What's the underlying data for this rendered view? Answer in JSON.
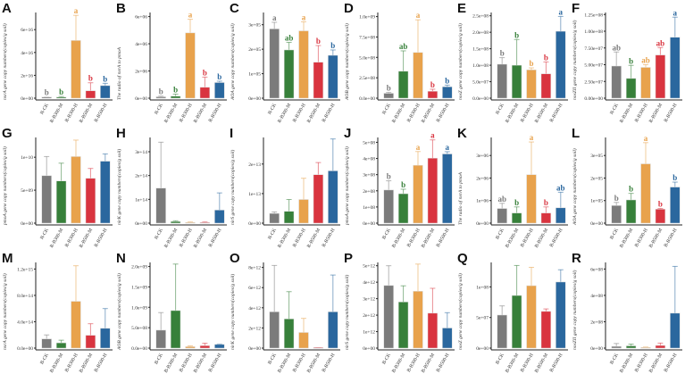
{
  "chart_data": [
    {
      "panel": "A",
      "type": "bar",
      "ylabel": "nxrA gene copy numbers(copies/g soil)",
      "categories": [
        "R-CK",
        "R-B300-M",
        "R-B300-H",
        "R-B500-M",
        "R-B500-H"
      ],
      "ticks": [
        "0e+00",
        "2e+16",
        "4e+16",
        "6e+16"
      ],
      "tick_values": [
        0,
        2e+16,
        4e+16,
        6e+16
      ],
      "ylim": [
        0,
        7.5e+16
      ],
      "values": [
        1000000000000000.0,
        1000000000000000.0,
        5.05e+16,
        6500000000000000.0,
        1.1e+16
      ],
      "err_top": [
        1000000000000000.0,
        1500000000000000.0,
        7.25e+16,
        1.35e+16,
        1.3e+16
      ],
      "sig": [
        "b",
        "b",
        "a",
        "b",
        "b"
      ]
    },
    {
      "panel": "B",
      "type": "bar",
      "ylabel": "The radio of nxrA to pmoA",
      "categories": [
        "R-CK",
        "R-B300-M",
        "R-B300-H",
        "R-B500-M",
        "R-B500-H"
      ],
      "ticks": [
        "0e+00",
        "2e+06",
        "4e+06",
        "6e+06"
      ],
      "tick_values": [
        0,
        2000000.0,
        4000000.0,
        6000000.0
      ],
      "ylim": [
        0,
        6300000.0
      ],
      "values": [
        100000.0,
        150000.0,
        4800000.0,
        800000.0,
        1150000.0
      ],
      "err_top": [
        150000.0,
        300000.0,
        5800000.0,
        1550000.0,
        1250000.0
      ],
      "sig": [
        "b",
        "b",
        "a",
        "b",
        "b"
      ]
    },
    {
      "panel": "C",
      "type": "bar",
      "ylabel": "AOA gene copy numbers(copies/g soil)",
      "categories": [
        "R-CK",
        "R-B300-M",
        "R-B300-H",
        "R-B500-M",
        "R-B500-H"
      ],
      "ticks": [
        "0e+00",
        "1e+05",
        "2e+05",
        "3e+05"
      ],
      "tick_values": [
        0,
        100000.0,
        200000.0,
        300000.0
      ],
      "ylim": [
        0,
        350000.0
      ],
      "values": [
        283000.0,
        197000.0,
        275000.0,
        147000.0,
        175000.0
      ],
      "err_top": [
        310000.0,
        228000.0,
        312000.0,
        215000.0,
        197000.0
      ],
      "sig": [
        "a",
        "ab",
        "a",
        "b",
        "b"
      ]
    },
    {
      "panel": "D",
      "type": "bar",
      "ylabel": "AOB gene copy numbers(copies/g soil)",
      "categories": [
        "R-CK",
        "R-B300-M",
        "R-B300-H",
        "R-B500-M",
        "R-B500-H"
      ],
      "ticks": [
        "0.0e+00",
        "2.5e+08",
        "5.0e+08",
        "7.5e+08",
        "1.0e+09"
      ],
      "tick_values": [
        0,
        250000000.0,
        500000000.0,
        750000000.0,
        1000000000.0
      ],
      "ylim": [
        0,
        1050000000.0
      ],
      "values": [
        60000000.0,
        330000000.0,
        560000000.0,
        85000000.0,
        140000000.0
      ],
      "err_top": [
        70000000.0,
        580000000.0,
        960000000.0,
        110000000.0,
        160000000.0
      ],
      "sig": [
        "b",
        "ab",
        "a",
        "b",
        "b"
      ]
    },
    {
      "panel": "E",
      "type": "bar",
      "ylabel": "nosZ gene copy numbers(copies/g soil)",
      "categories": [
        "R-CK",
        "R-B300-M",
        "R-B300-H",
        "R-B500-M",
        "R-B500-H"
      ],
      "ticks": [
        "0.0e+00",
        "5.0e+07",
        "1.0e+08",
        "1.5e+08",
        "2.0e+08",
        "2.5e+08"
      ],
      "tick_values": [
        0,
        50000000.0,
        100000000.0,
        150000000.0,
        200000000.0,
        250000000.0
      ],
      "ylim": [
        0,
        260000000.0
      ],
      "values": [
        103000000.0,
        100000000.0,
        86000000.0,
        74000000.0,
        203000000.0
      ],
      "err_top": [
        123000000.0,
        178000000.0,
        92000000.0,
        110000000.0,
        248000000.0
      ],
      "sig": [
        "b",
        "b",
        "b",
        "b",
        "a"
      ]
    },
    {
      "panel": "F",
      "type": "bar",
      "ylabel": "nosZII gene copy numbers(copies/g soil)",
      "categories": [
        "R-CK",
        "R-B300-M",
        "R-B300-H",
        "R-B500-M",
        "R-B500-H"
      ],
      "ticks": [
        "0.00e+00",
        "2.50e+07",
        "5.00e+07",
        "7.50e+07",
        "1.00e+08",
        "1.25e+08"
      ],
      "tick_values": [
        0,
        25000000.0,
        50000000.0,
        75000000.0,
        100000000.0,
        125000000.0
      ],
      "ylim": [
        0,
        128000000.0
      ],
      "values": [
        48000000.0,
        29500000.0,
        46000000.0,
        64500000.0,
        91000000.0
      ],
      "err_top": [
        69000000.0,
        49000000.0,
        50000000.0,
        75500000.0,
        121000000.0
      ],
      "sig": [
        "ab",
        "b",
        "ab",
        "ab",
        "a"
      ]
    },
    {
      "panel": "G",
      "type": "bar",
      "ylabel": "pmoA gene copy numbers(copies/g soil)",
      "categories": [
        "R-CK",
        "R-B300-M",
        "R-B300-H",
        "R-B500-M",
        "R-B500-H"
      ],
      "ticks": [
        "0e+00",
        "5e+09",
        "1e+10"
      ],
      "tick_values": [
        0,
        5000000000.0,
        10000000000.0
      ],
      "ylim": [
        0,
        13000000000.0
      ],
      "values": [
        7200000000.0,
        6400000000.0,
        10100000000.0,
        6800000000.0,
        9400000000.0
      ],
      "err_top": [
        10100000000.0,
        9100000000.0,
        12600000000.0,
        8300000000.0,
        10500000000.0
      ],
      "sig": [
        "",
        "",
        "",
        "",
        ""
      ]
    },
    {
      "panel": "H",
      "type": "bar",
      "ylabel": "nirK gene copy numbers(copies/g soil)",
      "categories": [
        "R-CK",
        "R-B300-M",
        "R-B300-H",
        "R-B500-M",
        "R-B500-H"
      ],
      "ticks": [
        "0e+00",
        "1e+14",
        "2e+14",
        "3e+14"
      ],
      "tick_values": [
        0,
        100000000000000.0,
        200000000000000.0,
        300000000000000.0
      ],
      "ylim": [
        0,
        360000000000000.0
      ],
      "values": [
        147000000000000.0,
        7000000000000.0,
        3000000000000.0,
        3000000000000.0,
        55000000000000.0
      ],
      "err_top": [
        340000000000000.0,
        10000000000000.0,
        5000000000000.0,
        5000000000000.0,
        127000000000000.0
      ],
      "sig": [
        "",
        "",
        "",
        "",
        ""
      ]
    },
    {
      "panel": "I",
      "type": "bar",
      "ylabel": "nirS gene copy numbers(copies/g soil)",
      "categories": [
        "R-CK",
        "R-B300-M",
        "R-B300-H",
        "R-B500-M",
        "R-B500-H"
      ],
      "ticks": [
        "0e+00",
        "1e+13",
        "2e+13"
      ],
      "tick_values": [
        0,
        10000000000000.0,
        20000000000000.0
      ],
      "ylim": [
        0,
        29000000000000.0
      ],
      "values": [
        3300000000000.0,
        4000000000000.0,
        8000000000000.0,
        16400000000000.0,
        17700000000000.0
      ],
      "err_top": [
        3800000000000.0,
        8000000000000.0,
        15200000000000.0,
        20500000000000.0,
        28500000000000.0
      ],
      "sig": [
        "",
        "",
        "",
        "",
        ""
      ]
    },
    {
      "panel": "J",
      "type": "bar",
      "ylabel": "pmoA gene copy numbers(copies/g soil)",
      "categories": [
        "B-CK",
        "B-B300-M",
        "B-B300-H",
        "B-B500-M",
        "B-B500-H"
      ],
      "ticks": [
        "0e+00",
        "1e+08",
        "2e+08",
        "3e+08",
        "4e+08",
        "5e+08"
      ],
      "tick_values": [
        0,
        100000000.0,
        200000000.0,
        300000000.0,
        400000000.0,
        500000000.0
      ],
      "ylim": [
        0,
        530000000.0
      ],
      "values": [
        205000000.0,
        182000000.0,
        358000000.0,
        402000000.0,
        428000000.0
      ],
      "err_top": [
        262000000.0,
        210000000.0,
        443000000.0,
        515000000.0,
        442000000.0
      ],
      "sig": [
        "b",
        "b",
        "a",
        "a",
        "a"
      ]
    },
    {
      "panel": "K",
      "type": "bar",
      "ylabel": "The radio of nxrA to pmoA",
      "categories": [
        "B-CK",
        "B-B300-M",
        "B-B300-H",
        "B-B500-M",
        "B-B500-H"
      ],
      "ticks": [
        "0e+00",
        "1e+06",
        "2e+06",
        "3e+06"
      ],
      "tick_values": [
        0,
        1000000.0,
        2000000.0,
        3000000.0
      ],
      "ylim": [
        0,
        3800000.0
      ],
      "values": [
        650000.0,
        450000.0,
        2150000.0,
        450000.0,
        680000.0
      ],
      "err_top": [
        880000.0,
        720000.0,
        3600000.0,
        720000.0,
        1370000.0
      ],
      "sig": [
        "ab",
        "b",
        "a",
        "b",
        "ab"
      ]
    },
    {
      "panel": "L",
      "type": "bar",
      "ylabel": "AOA gene copy numbers(copies/g soil)",
      "categories": [
        "B-CK",
        "B-B300-M",
        "B-B300-H",
        "B-B500-M",
        "B-B500-H"
      ],
      "ticks": [
        "0e+00",
        "1e+05",
        "2e+05",
        "3e+05"
      ],
      "tick_values": [
        0,
        100000.0,
        200000.0,
        300000.0
      ],
      "ylim": [
        0,
        380000.0
      ],
      "values": [
        78000.0,
        103000.0,
        263000.0,
        62000.0,
        160000.0
      ],
      "err_top": [
        92000.0,
        132000.0,
        357000.0,
        65000.0,
        182000.0
      ],
      "sig": [
        "b",
        "b",
        "a",
        "b",
        "b"
      ]
    },
    {
      "panel": "M",
      "type": "bar",
      "ylabel": "nxrA gene copy numbers(copies/g soil)",
      "categories": [
        "B-CK",
        "B-B300-M",
        "B-B300-H",
        "B-B500-M",
        "B-B500-H"
      ],
      "ticks": [
        "0.0e+00",
        "4.0e+14",
        "8.0e+14",
        "1.2e+15"
      ],
      "tick_values": [
        0,
        400000000000000.0,
        800000000000000.0,
        1200000000000000.0
      ],
      "ylim": [
        0,
        1300000000000000.0
      ],
      "values": [
        140000000000000.0,
        80000000000000.0,
        710000000000000.0,
        195000000000000.0,
        300000000000000.0
      ],
      "err_top": [
        200000000000000.0,
        120000000000000.0,
        1250000000000000.0,
        370000000000000.0,
        600000000000000.0
      ],
      "sig": [
        "",
        "",
        "",
        "",
        ""
      ]
    },
    {
      "panel": "N",
      "type": "bar",
      "ylabel": "AOB gene copy numbers(copies/g soil)",
      "categories": [
        "B-CK",
        "B-B300-M",
        "B-B300-H",
        "B-B500-M",
        "B-B500-H"
      ],
      "ticks": [
        "0.0e+00",
        "5.0e+08",
        "1.0e+09",
        "1.5e+09",
        "2.0e+09"
      ],
      "tick_values": [
        0,
        500000000.0,
        1000000000.0,
        1500000000.0,
        2000000000.0
      ],
      "ylim": [
        0,
        2100000000.0
      ],
      "values": [
        440000000.0,
        920000000.0,
        35000000.0,
        60000000.0,
        90000000.0
      ],
      "err_top": [
        870000000.0,
        2060000000.0,
        55000000.0,
        120000000.0,
        100000000.0
      ],
      "sig": [
        "",
        "",
        "",
        "",
        ""
      ]
    },
    {
      "panel": "O",
      "type": "bar",
      "ylabel": "nirK gene copy numbers(copies/g soil)",
      "categories": [
        "B-CK",
        "B-B300-M",
        "B-B300-H",
        "B-B500-M",
        "B-B500-H"
      ],
      "ticks": [
        "0e+00",
        "2e+12",
        "4e+12",
        "6e+12",
        "8e+12"
      ],
      "tick_values": [
        0,
        2000000000000.0,
        4000000000000.0,
        6000000000000.0,
        8000000000000.0
      ],
      "ylim": [
        0,
        8500000000000.0
      ],
      "values": [
        3600000000000.0,
        2900000000000.0,
        1550000000000.0,
        50000000000.0,
        3600000000000.0
      ],
      "err_top": [
        8200000000000.0,
        5600000000000.0,
        2950000000000.0,
        50000000000.0,
        7250000000000.0
      ],
      "sig": [
        "",
        "",
        "",
        "",
        ""
      ]
    },
    {
      "panel": "P",
      "type": "bar",
      "ylabel": "nirS gene copy numbers(copies/g soil)",
      "categories": [
        "B-CK",
        "B-B300-M",
        "B-B300-H",
        "B-B500-M",
        "B-B500-H"
      ],
      "ticks": [
        "0e+00",
        "1e+12",
        "2e+12",
        "3e+12",
        "4e+12",
        "5e+12"
      ],
      "tick_values": [
        0,
        1000000000000.0,
        2000000000000.0,
        3000000000000.0,
        4000000000000.0,
        5000000000000.0
      ],
      "ylim": [
        0,
        5200000000000.0
      ],
      "values": [
        3800000000000.0,
        2800000000000.0,
        3450000000000.0,
        2120000000000.0,
        1220000000000.0
      ],
      "err_top": [
        5000000000000.0,
        3780000000000.0,
        5100000000000.0,
        3630000000000.0,
        2150000000000.0
      ],
      "sig": [
        "",
        "",
        "",
        "",
        ""
      ]
    },
    {
      "panel": "Q",
      "type": "bar",
      "ylabel": "nosZ gene copy numbers(copies/g soil)",
      "categories": [
        "B-CK",
        "B-B300-M",
        "B-B300-H",
        "B-B500-M",
        "B-B500-H"
      ],
      "ticks": [
        "0e+00",
        "5e+07",
        "1e+08"
      ],
      "tick_values": [
        0,
        50000000.0,
        100000000.0
      ],
      "ylim": [
        0,
        140000000.0
      ],
      "values": [
        54000000.0,
        86000000.0,
        102000000.0,
        60000000.0,
        108000000.0
      ],
      "err_top": [
        69000000.0,
        135000000.0,
        132000000.0,
        64000000.0,
        128000000.0
      ],
      "sig": [
        "",
        "",
        "",
        "",
        ""
      ]
    },
    {
      "panel": "R",
      "type": "bar",
      "ylabel": "nosZII gene copy numbers(copies/g soil)",
      "categories": [
        "B-CK",
        "B-B300-M",
        "B-B300-H",
        "B-B500-M",
        "B-B500-H"
      ],
      "ticks": [
        "0e+00",
        "2e+08",
        "4e+08",
        "6e+08"
      ],
      "tick_values": [
        0,
        200000000.0,
        400000000.0,
        600000000.0
      ],
      "ylim": [
        0,
        650000000.0
      ],
      "values": [
        13000000.0,
        17000000.0,
        5000000.0,
        20000000.0,
        265000000.0
      ],
      "err_top": [
        35000000.0,
        30000000.0,
        8000000.0,
        38000000.0,
        620000000.0
      ],
      "sig": [
        "",
        "",
        "",
        "",
        ""
      ]
    }
  ],
  "colors": [
    "#7b7b7b",
    "#37803a",
    "#e8a24c",
    "#d9343f",
    "#2a679e"
  ]
}
